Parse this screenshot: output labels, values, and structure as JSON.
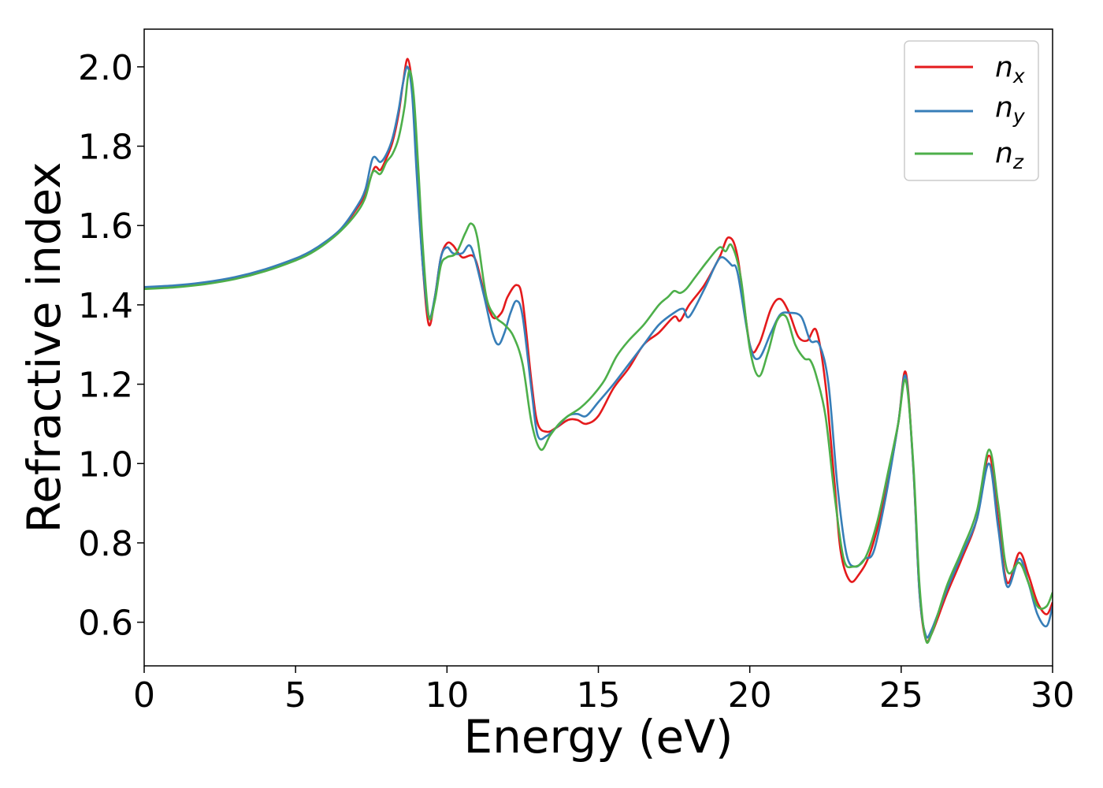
{
  "chart_data": {
    "type": "line",
    "xlabel": "Energy (eV)",
    "ylabel": "Refractive index",
    "xlim": [
      0,
      30
    ],
    "ylim": [
      0.49,
      2.095
    ],
    "xticks": [
      0,
      5,
      10,
      15,
      20,
      25,
      30
    ],
    "xtick_labels": [
      "0",
      "5",
      "10",
      "15",
      "20",
      "25",
      "30"
    ],
    "yticks": [
      0.6,
      0.8,
      1.0,
      1.2,
      1.4,
      1.6,
      1.8,
      2.0
    ],
    "ytick_labels": [
      "0.6",
      "0.8",
      "1.0",
      "1.2",
      "1.4",
      "1.6",
      "1.8",
      "2.0"
    ],
    "grid": false,
    "legend_position": "top-right",
    "series": [
      {
        "name": "n_x",
        "label_main": "n",
        "label_sub": "x",
        "color": "#e41a1c",
        "x": [
          0,
          1,
          2,
          3,
          4,
          5,
          5.5,
          6,
          6.5,
          7,
          7.3,
          7.6,
          7.8,
          8.0,
          8.2,
          8.4,
          8.55,
          8.7,
          8.85,
          9.0,
          9.2,
          9.4,
          9.6,
          9.8,
          10.0,
          10.2,
          10.5,
          10.9,
          11.2,
          11.5,
          11.8,
          12.0,
          12.3,
          12.5,
          12.8,
          13.0,
          13.3,
          13.6,
          14.0,
          14.3,
          14.6,
          15.0,
          15.5,
          16.0,
          16.5,
          17.0,
          17.5,
          17.7,
          18.0,
          18.5,
          19.0,
          19.3,
          19.6,
          20.0,
          20.3,
          20.7,
          21.0,
          21.3,
          21.6,
          21.9,
          22.2,
          22.5,
          22.8,
          23.0,
          23.3,
          23.6,
          24.0,
          24.5,
          24.9,
          25.15,
          25.4,
          25.6,
          25.8,
          26.0,
          26.5,
          27.0,
          27.5,
          27.9,
          28.2,
          28.5,
          28.9,
          29.2,
          29.5,
          29.8,
          30.0
        ],
        "y": [
          1.443,
          1.447,
          1.455,
          1.468,
          1.488,
          1.515,
          1.534,
          1.558,
          1.59,
          1.64,
          1.68,
          1.745,
          1.74,
          1.77,
          1.81,
          1.88,
          1.96,
          2.02,
          1.95,
          1.75,
          1.5,
          1.35,
          1.42,
          1.52,
          1.555,
          1.55,
          1.52,
          1.52,
          1.44,
          1.37,
          1.38,
          1.42,
          1.45,
          1.41,
          1.2,
          1.1,
          1.08,
          1.09,
          1.11,
          1.11,
          1.1,
          1.12,
          1.19,
          1.24,
          1.3,
          1.33,
          1.37,
          1.36,
          1.4,
          1.45,
          1.52,
          1.57,
          1.52,
          1.3,
          1.3,
          1.39,
          1.415,
          1.38,
          1.32,
          1.31,
          1.335,
          1.2,
          0.95,
          0.78,
          0.705,
          0.72,
          0.78,
          0.93,
          1.1,
          1.23,
          0.99,
          0.68,
          0.56,
          0.57,
          0.67,
          0.76,
          0.86,
          1.02,
          0.86,
          0.7,
          0.775,
          0.72,
          0.65,
          0.62,
          0.65
        ]
      },
      {
        "name": "n_y",
        "label_main": "n",
        "label_sub": "y",
        "color": "#377eb8",
        "x": [
          0,
          1,
          2,
          3,
          4,
          5,
          5.5,
          6,
          6.5,
          7,
          7.3,
          7.55,
          7.8,
          8.0,
          8.2,
          8.4,
          8.55,
          8.7,
          8.85,
          9.0,
          9.2,
          9.4,
          9.6,
          9.8,
          10.0,
          10.2,
          10.5,
          10.8,
          11.2,
          11.5,
          11.7,
          11.9,
          12.1,
          12.3,
          12.5,
          12.8,
          13.0,
          13.3,
          13.6,
          14.0,
          14.3,
          14.6,
          15.0,
          15.5,
          16.0,
          16.5,
          17.0,
          17.5,
          17.8,
          18.0,
          18.5,
          18.9,
          19.1,
          19.4,
          19.6,
          20.0,
          20.3,
          20.7,
          21.0,
          21.3,
          21.7,
          22.0,
          22.3,
          22.6,
          22.9,
          23.2,
          23.5,
          23.8,
          24.1,
          24.5,
          24.9,
          25.15,
          25.4,
          25.6,
          25.8,
          26.0,
          26.5,
          27.0,
          27.5,
          27.9,
          28.2,
          28.5,
          28.9,
          29.2,
          29.5,
          29.8,
          30.0
        ],
        "y": [
          1.445,
          1.449,
          1.457,
          1.47,
          1.49,
          1.517,
          1.535,
          1.56,
          1.592,
          1.645,
          1.69,
          1.77,
          1.76,
          1.78,
          1.82,
          1.89,
          1.96,
          2.0,
          1.93,
          1.73,
          1.5,
          1.37,
          1.42,
          1.52,
          1.545,
          1.53,
          1.53,
          1.545,
          1.43,
          1.33,
          1.3,
          1.33,
          1.38,
          1.41,
          1.37,
          1.18,
          1.07,
          1.07,
          1.09,
          1.12,
          1.125,
          1.12,
          1.155,
          1.2,
          1.25,
          1.3,
          1.35,
          1.38,
          1.39,
          1.37,
          1.44,
          1.505,
          1.52,
          1.5,
          1.48,
          1.3,
          1.265,
          1.33,
          1.375,
          1.38,
          1.37,
          1.31,
          1.3,
          1.2,
          0.94,
          0.77,
          0.74,
          0.76,
          0.78,
          0.92,
          1.1,
          1.22,
          0.99,
          0.68,
          0.57,
          0.58,
          0.68,
          0.77,
          0.86,
          1.0,
          0.84,
          0.69,
          0.76,
          0.7,
          0.62,
          0.59,
          0.64
        ]
      },
      {
        "name": "n_z",
        "label_main": "n",
        "label_sub": "z",
        "color": "#4daf4a",
        "x": [
          0,
          1,
          2,
          3,
          4,
          5,
          5.5,
          6,
          6.5,
          7,
          7.3,
          7.55,
          7.8,
          8.0,
          8.2,
          8.4,
          8.6,
          8.75,
          8.9,
          9.05,
          9.2,
          9.4,
          9.6,
          9.8,
          10.0,
          10.3,
          10.6,
          10.8,
          11.0,
          11.3,
          11.6,
          11.9,
          12.2,
          12.5,
          12.8,
          13.1,
          13.4,
          13.7,
          14.0,
          14.4,
          14.8,
          15.2,
          15.6,
          16.0,
          16.5,
          17.0,
          17.3,
          17.5,
          17.7,
          17.9,
          18.2,
          18.6,
          19.0,
          19.2,
          19.4,
          19.7,
          20.0,
          20.3,
          20.6,
          20.9,
          21.2,
          21.5,
          21.8,
          22.0,
          22.2,
          22.5,
          22.8,
          23.1,
          23.4,
          23.8,
          24.2,
          24.6,
          24.9,
          25.15,
          25.4,
          25.6,
          25.8,
          26.0,
          26.5,
          27.0,
          27.5,
          27.9,
          28.2,
          28.5,
          28.9,
          29.2,
          29.5,
          29.8,
          30.0
        ],
        "y": [
          1.44,
          1.444,
          1.452,
          1.465,
          1.485,
          1.512,
          1.53,
          1.555,
          1.587,
          1.63,
          1.67,
          1.735,
          1.73,
          1.76,
          1.78,
          1.82,
          1.9,
          1.99,
          1.93,
          1.75,
          1.55,
          1.37,
          1.41,
          1.5,
          1.52,
          1.53,
          1.58,
          1.605,
          1.57,
          1.42,
          1.37,
          1.35,
          1.32,
          1.25,
          1.1,
          1.035,
          1.07,
          1.1,
          1.12,
          1.14,
          1.17,
          1.21,
          1.27,
          1.31,
          1.35,
          1.4,
          1.42,
          1.435,
          1.43,
          1.44,
          1.47,
          1.51,
          1.545,
          1.535,
          1.55,
          1.47,
          1.29,
          1.22,
          1.28,
          1.36,
          1.37,
          1.3,
          1.265,
          1.26,
          1.22,
          1.12,
          0.92,
          0.76,
          0.74,
          0.76,
          0.85,
          0.99,
          1.1,
          1.21,
          1.0,
          0.7,
          0.56,
          0.57,
          0.69,
          0.78,
          0.88,
          1.035,
          0.9,
          0.73,
          0.75,
          0.7,
          0.64,
          0.64,
          0.675
        ]
      }
    ]
  }
}
